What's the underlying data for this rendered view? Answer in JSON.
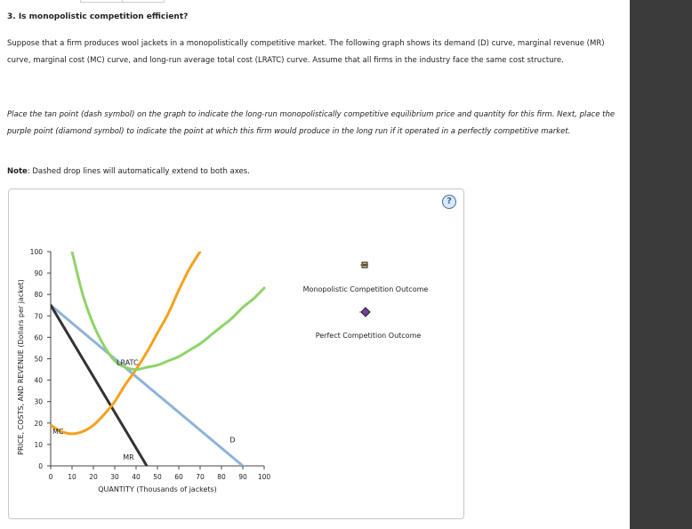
{
  "question": {
    "title": "3. Is monopolistic competition efficient?",
    "intro_text": "Suppose that a firm produces wool jackets in a monopolistically competitive market. The following graph shows its demand (D) curve, marginal revenue (MR) curve, marginal cost (MC) curve, and long-run average total cost (LRATC) curve. Assume that all firms in the industry face the same cost structure.",
    "instruction_text": "Place the tan point (dash symbol) on the graph to indicate the long-run monopolistically competitive equilibrium price and quantity for this firm. Next, place the purple point (diamond symbol) to indicate the point at which this firm would produce in the long run if it operated in a perfectly competitive market.",
    "note_label": "Note",
    "note_text": ": Dashed drop lines will automatically extend to both axes."
  },
  "panel": {
    "help_label": "?"
  },
  "legend": {
    "items": [
      {
        "label": "Monopolistic Competition Outcome",
        "symbol": "dash-icon",
        "color": "#c8b67a"
      },
      {
        "label": "Perfect Competition Outcome",
        "symbol": "diamond-icon",
        "color": "#7b3fa0"
      }
    ]
  },
  "colors": {
    "mc": "#f5a01c",
    "lratc": "#8fd36a",
    "demand": "#8fb3d9",
    "mr": "#333333",
    "axis": "#444444"
  },
  "chart_data": {
    "type": "line",
    "xlabel": "QUANTITY (Thousands of jackets)",
    "ylabel": "PRICE, COSTS, AND REVENUE (Dollars per jacket)",
    "xlim": [
      0,
      100
    ],
    "ylim": [
      0,
      100
    ],
    "x_ticks": [
      "0",
      "10",
      "20",
      "30",
      "40",
      "50",
      "60",
      "70",
      "80",
      "90",
      "100"
    ],
    "y_ticks": [
      "0",
      "10",
      "20",
      "30",
      "40",
      "50",
      "60",
      "70",
      "80",
      "90",
      "100"
    ],
    "grid": false,
    "series": [
      {
        "name": "D",
        "x": [
          0,
          90
        ],
        "y": [
          75,
          0
        ]
      },
      {
        "name": "MR",
        "x": [
          0,
          45
        ],
        "y": [
          75,
          0
        ]
      },
      {
        "name": "MC",
        "x": [
          0,
          5,
          10,
          15,
          20,
          25,
          30,
          35,
          40,
          45,
          50,
          55,
          60,
          65,
          70
        ],
        "y": [
          19,
          16,
          15,
          16,
          19,
          24,
          30,
          38,
          45,
          53,
          62,
          71,
          82,
          92,
          100
        ]
      },
      {
        "name": "LRATC",
        "x": [
          10,
          15,
          20,
          25,
          30,
          35,
          40,
          45,
          50,
          55,
          60,
          65,
          70,
          75,
          80,
          85,
          90,
          95,
          100
        ],
        "y": [
          100,
          80,
          66,
          56,
          49,
          46,
          45,
          46,
          47,
          49,
          51,
          54,
          57,
          61,
          65,
          69,
          74,
          78,
          83
        ]
      }
    ],
    "annotations": [
      {
        "text": "LRATC",
        "x": 30,
        "y": 47
      },
      {
        "text": "MC",
        "x": 0,
        "y": 15
      },
      {
        "text": "D",
        "x": 83,
        "y": 11
      },
      {
        "text": "MR",
        "x": 33,
        "y": 3
      }
    ]
  }
}
